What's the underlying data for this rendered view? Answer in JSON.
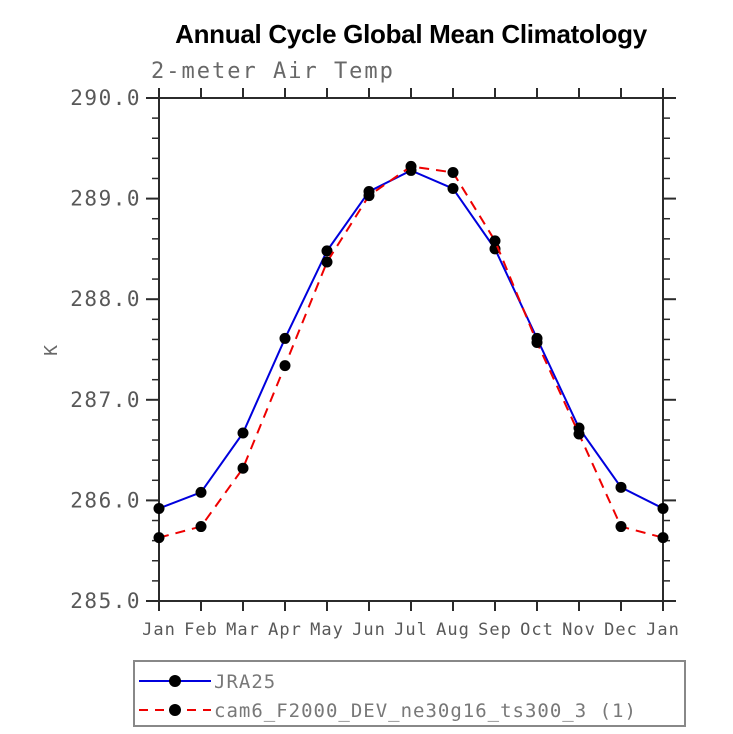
{
  "title": "Annual Cycle Global Mean Climatology",
  "subtitle": "2-meter Air Temp",
  "y_axis_label": "K",
  "chart_data": {
    "type": "line",
    "title": "Annual Cycle Global Mean Climatology",
    "subtitle": "2-meter Air Temp",
    "xlabel": "",
    "ylabel": "K",
    "categories": [
      "Jan",
      "Feb",
      "Mar",
      "Apr",
      "May",
      "Jun",
      "Jul",
      "Aug",
      "Sep",
      "Oct",
      "Nov",
      "Dec",
      "Jan"
    ],
    "series": [
      {
        "name": "JRA25",
        "color": "#0000dd",
        "line_style": "solid",
        "marker": "filled-circle",
        "marker_color": "#000000",
        "values": [
          285.92,
          286.08,
          286.67,
          287.61,
          288.48,
          289.07,
          289.28,
          289.1,
          288.5,
          287.61,
          286.72,
          286.13,
          285.92
        ]
      },
      {
        "name": "cam6_F2000_DEV_ne30g16_ts300_3 (1)",
        "color": "#ee0000",
        "line_style": "dashed",
        "marker": "filled-circle",
        "marker_color": "#000000",
        "values": [
          285.63,
          285.74,
          286.32,
          287.34,
          288.37,
          289.03,
          289.32,
          289.26,
          288.58,
          287.57,
          286.66,
          285.74,
          285.63
        ]
      }
    ],
    "ylim": [
      285.0,
      290.0
    ],
    "yticks": [
      285,
      286,
      287,
      288,
      289,
      290
    ],
    "ytick_labels": [
      "285.0",
      "286.0",
      "287.0",
      "288.0",
      "289.0",
      "290.0"
    ],
    "y_minor_step": 0.2,
    "grid": false,
    "legend_position": "bottom-left"
  },
  "legend": {
    "entries": [
      {
        "label": "JRA25"
      },
      {
        "label": "cam6_F2000_DEV_ne30g16_ts300_3 (1)"
      }
    ]
  },
  "colors": {
    "title_text": "#000000",
    "subtitle_text": "#686868",
    "tick_text": "#585858",
    "legend_text": "#787878",
    "axis": "#2b2b2b",
    "legend_border": "#888888",
    "marker": "#000000",
    "series_1": "#0000dd",
    "series_2": "#ee0000"
  }
}
